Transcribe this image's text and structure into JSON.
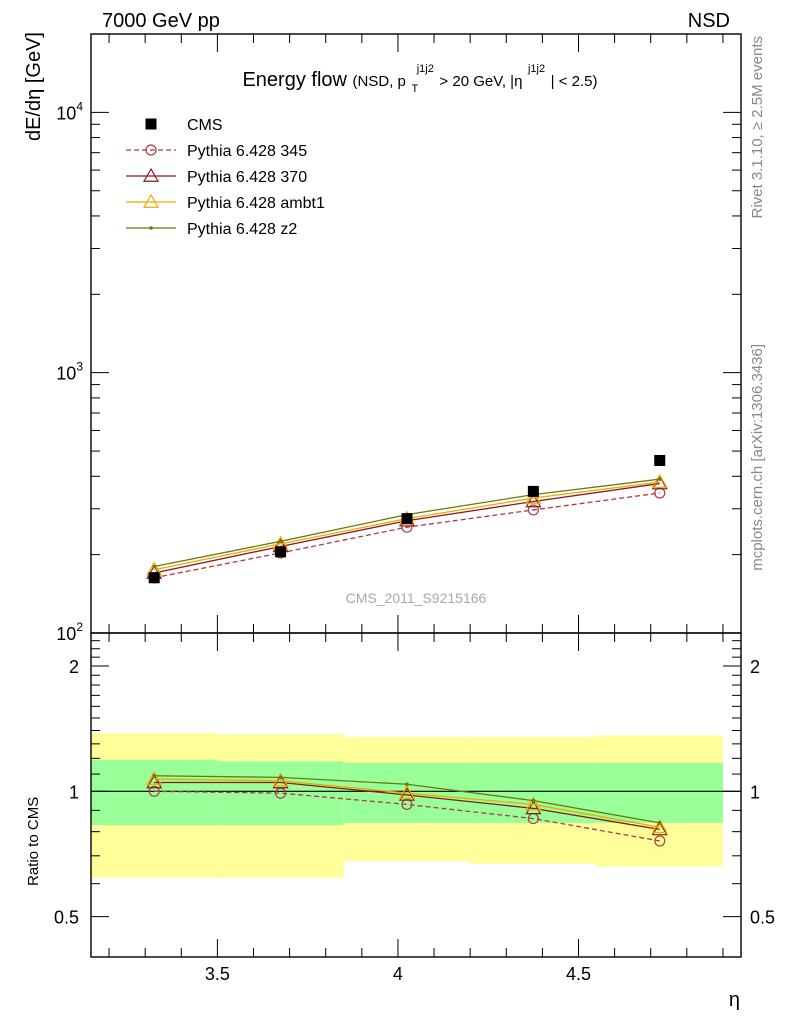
{
  "header": {
    "left": "7000 GeV pp",
    "right": "NSD"
  },
  "side": {
    "rivet": "Rivet 3.1.10, ≥ 2.5M events",
    "mcplots": "mcplots.cern.ch [arXiv:1306.3436]"
  },
  "watermark": "CMS_2011_S9215166",
  "chart_data": [
    {
      "type": "line",
      "title": "Energy flow",
      "title_detail": "(NSD, p_T^{j1j2} > 20 GeV, |η^{j1j2}| < 2.5)",
      "title_parts": {
        "main": "Energy flow",
        "open": "(NSD, p",
        "sub": "T",
        "sup": "j1j2",
        "mid": " > 20 GeV, |η",
        "sup2": "j1j2",
        "close": "| < 2.5)"
      },
      "ylabel": "dE/dη [GeV]",
      "yscale": "log",
      "ylim": [
        100,
        20000
      ],
      "xlim": [
        3.15,
        4.95
      ],
      "ytick_labels": [
        {
          "value": 100,
          "base": "10",
          "exp": "2"
        },
        {
          "value": 1000,
          "base": "10",
          "exp": "3"
        },
        {
          "value": 10000,
          "base": "10",
          "exp": "4"
        }
      ],
      "legend_position": "top-left",
      "series": [
        {
          "name": "CMS",
          "style": "data",
          "color": "#000000",
          "x": [
            3.325,
            3.675,
            4.025,
            4.375,
            4.725
          ],
          "y": [
            163,
            205,
            275,
            350,
            460
          ]
        },
        {
          "name": "Pythia 6.428 345",
          "style": "dashed-circle",
          "color": "#b03a48",
          "x": [
            3.325,
            3.675,
            4.025,
            4.375,
            4.725
          ],
          "y": [
            163,
            203,
            255,
            297,
            345
          ]
        },
        {
          "name": "Pythia 6.428 370",
          "style": "solid-triangle",
          "color": "#8b1a1a",
          "x": [
            3.325,
            3.675,
            4.025,
            4.375,
            4.725
          ],
          "y": [
            170,
            215,
            270,
            320,
            375
          ]
        },
        {
          "name": "Pythia 6.428 ambt1",
          "style": "solid-triangle",
          "color": "#f0a800",
          "x": [
            3.325,
            3.675,
            4.025,
            4.375,
            4.725
          ],
          "y": [
            175,
            220,
            275,
            330,
            380
          ]
        },
        {
          "name": "Pythia 6.428 z2",
          "style": "solid-dot",
          "color": "#6b7a10",
          "x": [
            3.325,
            3.675,
            4.025,
            4.375,
            4.725
          ],
          "y": [
            180,
            225,
            285,
            340,
            390
          ]
        }
      ]
    },
    {
      "type": "line",
      "ylabel": "Ratio to CMS",
      "xlabel": "η",
      "yscale": "log",
      "ylim": [
        0.4,
        2.4
      ],
      "xlim": [
        3.15,
        4.95
      ],
      "xticks": [
        3.5,
        4,
        4.5
      ],
      "xtick_labels": [
        "3.5",
        "4",
        "4.5"
      ],
      "yticks": [
        0.5,
        1,
        2
      ],
      "ytick_labels": [
        "0.5",
        "1",
        "2"
      ],
      "bands": {
        "x_edges": [
          3.15,
          3.5,
          3.85,
          4.2,
          4.55,
          4.9
        ],
        "inner_low": [
          0.83,
          0.83,
          0.84,
          0.84,
          0.84
        ],
        "inner_high": [
          1.19,
          1.18,
          1.17,
          1.17,
          1.17
        ],
        "outer_low": [
          0.62,
          0.62,
          0.68,
          0.67,
          0.66
        ],
        "outer_high": [
          1.38,
          1.37,
          1.35,
          1.35,
          1.36
        ],
        "inner_color": "#99ff99",
        "outer_color": "#ffff99"
      },
      "series": [
        {
          "name": "Pythia 6.428 345",
          "style": "dashed-circle",
          "color": "#b03a48",
          "x": [
            3.325,
            3.675,
            4.025,
            4.375,
            4.725
          ],
          "y": [
            1.0,
            0.99,
            0.93,
            0.86,
            0.76
          ]
        },
        {
          "name": "Pythia 6.428 370",
          "style": "solid-triangle",
          "color": "#8b1a1a",
          "x": [
            3.325,
            3.675,
            4.025,
            4.375,
            4.725
          ],
          "y": [
            1.05,
            1.05,
            0.98,
            0.91,
            0.81
          ]
        },
        {
          "name": "Pythia 6.428 ambt1",
          "style": "solid-triangle",
          "color": "#f0a800",
          "x": [
            3.325,
            3.675,
            4.025,
            4.375,
            4.725
          ],
          "y": [
            1.07,
            1.06,
            0.99,
            0.93,
            0.82
          ]
        },
        {
          "name": "Pythia 6.428 z2",
          "style": "solid-dot",
          "color": "#6b7a10",
          "x": [
            3.325,
            3.675,
            4.025,
            4.375,
            4.725
          ],
          "y": [
            1.09,
            1.08,
            1.04,
            0.95,
            0.84
          ]
        }
      ]
    }
  ]
}
